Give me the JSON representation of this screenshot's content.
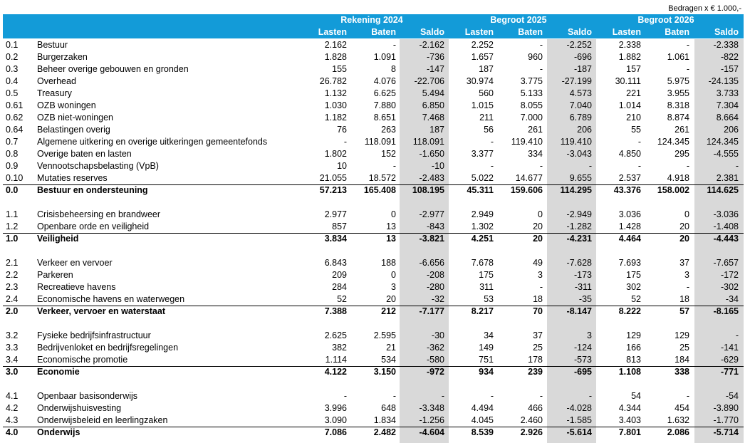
{
  "header": {
    "note": "Bedragen x € 1.000,-",
    "groups": [
      "Rekening 2024",
      "Begroot 2025",
      "Begroot 2026"
    ],
    "columns": [
      "Lasten",
      "Baten",
      "Saldo",
      "Lasten",
      "Baten",
      "Saldo",
      "Lasten",
      "Baten",
      "Saldo"
    ]
  },
  "table": {
    "sections": [
      {
        "rows": [
          [
            "0.1",
            "Bestuur",
            "2.162",
            "-",
            "-2.162",
            "2.252",
            "-",
            "-2.252",
            "2.338",
            "-",
            "-2.338"
          ],
          [
            "0.2",
            "Burgerzaken",
            "1.828",
            "1.091",
            "-736",
            "1.657",
            "960",
            "-696",
            "1.882",
            "1.061",
            "-822"
          ],
          [
            "0.3",
            "Beheer overige gebouwen en gronden",
            "155",
            "8",
            "-147",
            "187",
            "-",
            "-187",
            "157",
            "-",
            "-157"
          ],
          [
            "0.4",
            "Overhead",
            "26.782",
            "4.076",
            "-22.706",
            "30.974",
            "3.775",
            "-27.199",
            "30.111",
            "5.975",
            "-24.135"
          ],
          [
            "0.5",
            "Treasury",
            "1.132",
            "6.625",
            "5.494",
            "560",
            "5.133",
            "4.573",
            "221",
            "3.955",
            "3.733"
          ],
          [
            "0.61",
            "OZB woningen",
            "1.030",
            "7.880",
            "6.850",
            "1.015",
            "8.055",
            "7.040",
            "1.014",
            "8.318",
            "7.304"
          ],
          [
            "0.62",
            "OZB niet-woningen",
            "1.182",
            "8.651",
            "7.468",
            "211",
            "7.000",
            "6.789",
            "210",
            "8.874",
            "8.664"
          ],
          [
            "0.64",
            "Belastingen overig",
            "76",
            "263",
            "187",
            "56",
            "261",
            "206",
            "55",
            "261",
            "206"
          ],
          [
            "0.7",
            "Algemene uitkering en overige uitkeringen gemeentefonds",
            "-",
            "118.091",
            "118.091",
            "-",
            "119.410",
            "119.410",
            "-",
            "124.345",
            "124.345"
          ],
          [
            "0.8",
            "Overige baten en lasten",
            "1.802",
            "152",
            "-1.650",
            "3.377",
            "334",
            "-3.043",
            "4.850",
            "295",
            "-4.555"
          ],
          [
            "0.9",
            "Vennootschapsbelasting (VpB)",
            "10",
            "-",
            "-10",
            "-",
            "-",
            "-",
            "-",
            "-",
            "-"
          ],
          [
            "0.10",
            "Mutaties reserves",
            "21.055",
            "18.572",
            "-2.483",
            "5.022",
            "14.677",
            "9.655",
            "2.537",
            "4.918",
            "2.381"
          ]
        ],
        "total": [
          "0.0",
          "Bestuur en ondersteuning",
          "57.213",
          "165.408",
          "108.195",
          "45.311",
          "159.606",
          "114.295",
          "43.376",
          "158.002",
          "114.625"
        ]
      },
      {
        "rows": [
          [
            "1.1",
            "Crisisbeheersing en brandweer",
            "2.977",
            "0",
            "-2.977",
            "2.949",
            "0",
            "-2.949",
            "3.036",
            "0",
            "-3.036"
          ],
          [
            "1.2",
            "Openbare orde en veiligheid",
            "857",
            "13",
            "-843",
            "1.302",
            "20",
            "-1.282",
            "1.428",
            "20",
            "-1.408"
          ]
        ],
        "total": [
          "1.0",
          "Veiligheid",
          "3.834",
          "13",
          "-3.821",
          "4.251",
          "20",
          "-4.231",
          "4.464",
          "20",
          "-4.443"
        ]
      },
      {
        "rows": [
          [
            "2.1",
            "Verkeer en vervoer",
            "6.843",
            "188",
            "-6.656",
            "7.678",
            "49",
            "-7.628",
            "7.693",
            "37",
            "-7.657"
          ],
          [
            "2.2",
            "Parkeren",
            "209",
            "0",
            "-208",
            "175",
            "3",
            "-173",
            "175",
            "3",
            "-172"
          ],
          [
            "2.3",
            "Recreatieve havens",
            "284",
            "3",
            "-280",
            "311",
            "-",
            "-311",
            "302",
            "-",
            "-302"
          ],
          [
            "2.4",
            "Economische havens en waterwegen",
            "52",
            "20",
            "-32",
            "53",
            "18",
            "-35",
            "52",
            "18",
            "-34"
          ]
        ],
        "total": [
          "2.0",
          "Verkeer, vervoer en waterstaat",
          "7.388",
          "212",
          "-7.177",
          "8.217",
          "70",
          "-8.147",
          "8.222",
          "57",
          "-8.165"
        ]
      },
      {
        "rows": [
          [
            "3.2",
            "Fysieke bedrijfsinfrastructuur",
            "2.625",
            "2.595",
            "-30",
            "34",
            "37",
            "3",
            "129",
            "129",
            "-"
          ],
          [
            "3.3",
            "Bedrijvenloket en bedrijfsregelingen",
            "382",
            "21",
            "-362",
            "149",
            "25",
            "-124",
            "166",
            "25",
            "-141"
          ],
          [
            "3.4",
            "Economische promotie",
            "1.114",
            "534",
            "-580",
            "751",
            "178",
            "-573",
            "813",
            "184",
            "-629"
          ]
        ],
        "total": [
          "3.0",
          "Economie",
          "4.122",
          "3.150",
          "-972",
          "934",
          "239",
          "-695",
          "1.108",
          "338",
          "-771"
        ]
      },
      {
        "rows": [
          [
            "4.1",
            "Openbaar basisonderwijs",
            "-",
            "-",
            "-",
            "-",
            "-",
            "-",
            "54",
            "-",
            "-54"
          ],
          [
            "4.2",
            "Onderwijshuisvesting",
            "3.996",
            "648",
            "-3.348",
            "4.494",
            "466",
            "-4.028",
            "4.344",
            "454",
            "-3.890"
          ],
          [
            "4.3",
            "Onderwijsbeleid en leerlingzaken",
            "3.090",
            "1.834",
            "-1.256",
            "4.045",
            "2.460",
            "-1.585",
            "3.403",
            "1.632",
            "-1.770"
          ]
        ],
        "total": [
          "4.0",
          "Onderwijs",
          "7.086",
          "2.482",
          "-4.604",
          "8.539",
          "2.926",
          "-5.614",
          "7.801",
          "2.086",
          "-5.714"
        ]
      }
    ]
  }
}
